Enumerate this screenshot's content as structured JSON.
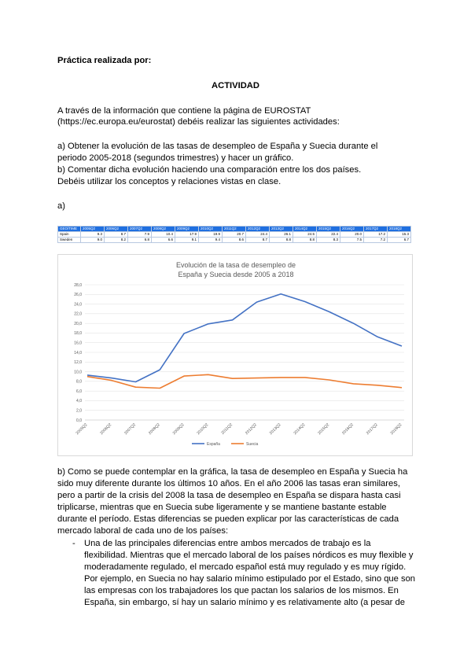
{
  "doc": {
    "author_label": "Práctica realizada por:",
    "heading": "ACTIVIDAD",
    "intro": [
      "A través de la información que contiene la página de EUROSTAT",
      "(https://ec.europa.eu/eurostat) debéis realizar las siguientes actividades:",
      "a) Obtener la evolución de las tasas de desempleo de España y Suecia durante el",
      "periodo 2005-2018 (segundos trimestres) y hacer un gráfico.",
      "b) Comentar dicha evolución haciendo una comparación entre los dos países.",
      "Debéis utilizar los conceptos y relaciones vistas en clase."
    ],
    "section_a": "a)",
    "section_b": [
      "b)  Como se puede contemplar en la gráfica, la tasa de desempleo en España y Suecia ha",
      "sido muy diferente durante los últimos 10 años. En el año 2006 las tasas eran similares,",
      "pero a partir de la crisis del 2008 la tasa de desempleo en España se dispara hasta casi",
      "triplicarse, mientras que en Suecia sube ligeramente y se mantiene bastante estable",
      "durante el período. Estas diferencias se pueden explicar por las características de cada",
      "mercado laboral de cada uno de los países:"
    ],
    "bullet_marker": "-",
    "bullet": [
      "Una de las principales diferencias entre ambos mercados de trabajo es la",
      "flexibilidad. Mientras que el mercado laboral de los países nórdicos es muy flexible y",
      "moderadamente regulado, el mercado español está muy regulado y es muy rígido.",
      "Por ejemplo, en Suecia no hay salario mínimo estipulado por el Estado, sino que son",
      "las empresas con los trabajadores los que pactan los salarios de los mismos. En",
      "España, sin embargo, sí hay un salario mínimo y es relativamente alto (a pesar de"
    ]
  },
  "table": {
    "header": [
      "GEO/TIME",
      "2005Q2",
      "2006Q2",
      "2007Q2",
      "2008Q2",
      "2009Q2",
      "2010Q2",
      "2011Q2",
      "2012Q2",
      "2013Q2",
      "2014Q2",
      "2015Q2",
      "2016Q2",
      "2017Q2",
      "2018Q2"
    ],
    "rows": [
      [
        "Spain",
        "9.3",
        "8.7",
        "7.9",
        "10.4",
        "17.9",
        "19.9",
        "20.7",
        "24.4",
        "26.1",
        "24.5",
        "22.4",
        "20.0",
        "17.2",
        "15.3"
      ],
      [
        "Sweden",
        "9.0",
        "8.2",
        "6.8",
        "6.6",
        "9.1",
        "9.4",
        "8.6",
        "8.7",
        "8.8",
        "8.8",
        "8.3",
        "7.5",
        "7.2",
        "6.7"
      ]
    ]
  },
  "chart_data": {
    "type": "line",
    "title_lines": [
      "Evolución de la tasa de desempleo de",
      "España y Suecia desde 2005 a 2018"
    ],
    "categories": [
      "2005Q2",
      "2006Q2",
      "2007Q2",
      "2008Q2",
      "2009Q2",
      "2010Q2",
      "2011Q2",
      "2012Q2",
      "2013Q2",
      "2014Q2",
      "2015Q2",
      "2016Q2",
      "2017Q2",
      "2018Q2"
    ],
    "series": [
      {
        "name": "España",
        "color": "#4472c4",
        "values": [
          9.3,
          8.7,
          7.9,
          10.4,
          17.9,
          19.9,
          20.7,
          24.4,
          26.1,
          24.5,
          22.4,
          20.0,
          17.2,
          15.3
        ]
      },
      {
        "name": "Suecia",
        "color": "#ed7d31",
        "values": [
          9.0,
          8.2,
          6.8,
          6.6,
          9.1,
          9.4,
          8.6,
          8.7,
          8.8,
          8.8,
          8.3,
          7.5,
          7.2,
          6.7
        ]
      }
    ],
    "y_ticks": [
      "0,0",
      "2,0",
      "4,0",
      "6,0",
      "8,0",
      "10,0",
      "12,0",
      "14,0",
      "16,0",
      "18,0",
      "20,0",
      "22,0",
      "24,0",
      "26,0",
      "28,0"
    ],
    "ylim": [
      0,
      28
    ],
    "grid": true,
    "legend": "bottom"
  }
}
